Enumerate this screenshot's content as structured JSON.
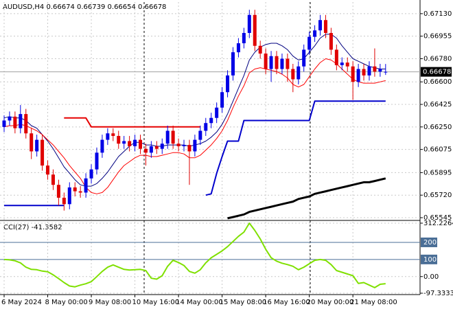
{
  "chart_data": {
    "type": "candlestick",
    "title": "AUDUSD,H4  0.66674 0.66739 0.66654 0.66678",
    "categories": [
      "6 May 2024",
      null,
      null,
      null,
      null,
      null,
      null,
      null,
      "8 May 00:00",
      null,
      null,
      null,
      null,
      null,
      null,
      null,
      "9 May 08:00",
      null,
      null,
      null,
      null,
      null,
      null,
      null,
      "10 May 16:00",
      null,
      null,
      null,
      null,
      null,
      null,
      null,
      "14 May 00:00",
      null,
      null,
      null,
      null,
      null,
      null,
      null,
      "15 May 08:00",
      null,
      null,
      null,
      null,
      null,
      null,
      null,
      "16 May 16:00",
      null,
      null,
      null,
      null,
      null,
      null,
      null,
      "20 May 00:00",
      null,
      null,
      null,
      null,
      null,
      null,
      null,
      "21 May 08:00",
      null,
      null,
      null,
      null,
      null,
      null
    ],
    "open": [
      0.6625,
      0.663,
      0.6633,
      0.6624,
      0.6635,
      0.662,
      0.6606,
      0.6615,
      0.6595,
      0.6588,
      0.658,
      0.657,
      0.6565,
      0.6578,
      0.6575,
      0.6574,
      0.6585,
      0.6592,
      0.6605,
      0.6615,
      0.662,
      0.6618,
      0.6612,
      0.6614,
      0.661,
      0.6615,
      0.6608,
      0.6605,
      0.661,
      0.6608,
      0.6612,
      0.6622,
      0.6612,
      0.661,
      0.6611,
      0.6606,
      0.6615,
      0.6622,
      0.6628,
      0.6632,
      0.664,
      0.6652,
      0.6665,
      0.6683,
      0.669,
      0.6698,
      0.6712,
      0.6688,
      0.6682,
      0.667,
      0.668,
      0.667,
      0.6678,
      0.667,
      0.6662,
      0.6672,
      0.6685,
      0.6695,
      0.67,
      0.6708,
      0.6698,
      0.6685,
      0.6673,
      0.6675,
      0.6672,
      0.666,
      0.667,
      0.6665,
      0.6672,
      0.6668,
      0.66674
    ],
    "high": [
      0.6634,
      0.6637,
      0.6637,
      0.6642,
      0.6639,
      0.6624,
      0.6619,
      0.6619,
      0.6599,
      0.6592,
      0.6584,
      0.6574,
      0.6582,
      0.6582,
      0.6579,
      0.6589,
      0.6596,
      0.6609,
      0.6619,
      0.6624,
      0.6624,
      0.6622,
      0.6618,
      0.6618,
      0.6619,
      0.6619,
      0.6612,
      0.6614,
      0.6614,
      0.6616,
      0.6626,
      0.6626,
      0.6616,
      0.6615,
      0.6615,
      0.6619,
      0.6626,
      0.6632,
      0.6636,
      0.6644,
      0.6656,
      0.6669,
      0.6687,
      0.6694,
      0.6702,
      0.6716,
      0.6716,
      0.6692,
      0.6686,
      0.6684,
      0.6684,
      0.6682,
      0.6682,
      0.6674,
      0.6676,
      0.6689,
      0.6699,
      0.6704,
      0.6712,
      0.6712,
      0.6702,
      0.6689,
      0.6679,
      0.6679,
      0.6676,
      0.6674,
      0.6674,
      0.6676,
      0.6686,
      0.6674,
      0.66739
    ],
    "low": [
      0.6621,
      0.6626,
      0.662,
      0.662,
      0.6616,
      0.66,
      0.6602,
      0.6591,
      0.6584,
      0.6576,
      0.6564,
      0.656,
      0.6561,
      0.6571,
      0.657,
      0.657,
      0.6581,
      0.6588,
      0.6601,
      0.6611,
      0.6614,
      0.6608,
      0.6608,
      0.6606,
      0.6606,
      0.6604,
      0.6595,
      0.6601,
      0.6604,
      0.6604,
      0.6608,
      0.6608,
      0.6606,
      0.6606,
      0.658,
      0.6602,
      0.6611,
      0.6618,
      0.6624,
      0.6628,
      0.6636,
      0.6648,
      0.6661,
      0.6679,
      0.6686,
      0.6694,
      0.6684,
      0.6678,
      0.6666,
      0.666,
      0.6666,
      0.6666,
      0.666,
      0.6652,
      0.6658,
      0.6668,
      0.6681,
      0.6691,
      0.6696,
      0.6694,
      0.6681,
      0.6669,
      0.6669,
      0.6668,
      0.6646,
      0.6656,
      0.6661,
      0.6661,
      0.6664,
      0.6664,
      0.66654
    ],
    "close": [
      0.663,
      0.6633,
      0.6624,
      0.6635,
      0.662,
      0.6606,
      0.6615,
      0.6595,
      0.6588,
      0.658,
      0.657,
      0.6565,
      0.6578,
      0.6575,
      0.6574,
      0.6585,
      0.6592,
      0.6605,
      0.6615,
      0.662,
      0.6618,
      0.6612,
      0.6614,
      0.661,
      0.6615,
      0.6608,
      0.6605,
      0.661,
      0.6608,
      0.6612,
      0.6622,
      0.6612,
      0.661,
      0.6611,
      0.6606,
      0.6615,
      0.6622,
      0.6628,
      0.6632,
      0.664,
      0.6652,
      0.6665,
      0.6683,
      0.669,
      0.6698,
      0.6712,
      0.6688,
      0.6682,
      0.667,
      0.668,
      0.667,
      0.6678,
      0.667,
      0.6662,
      0.6672,
      0.6685,
      0.6695,
      0.67,
      0.6708,
      0.6698,
      0.6685,
      0.6673,
      0.6675,
      0.6672,
      0.666,
      0.667,
      0.6665,
      0.6672,
      0.6668,
      0.667,
      0.66678
    ],
    "up_color": "#0000e6",
    "down_color": "#e00000",
    "last_price": 0.66678,
    "ylim": [
      0.65529,
      0.6722
    ],
    "yticks": [
      {
        "value": 0.6713,
        "label": "0.67130"
      },
      0.66955,
      {
        "value": 0.6678,
        "label": "0.66780"
      },
      {
        "value": 0.666,
        "label": "0.66600"
      },
      0.66425,
      {
        "value": 0.6625,
        "label": "0.66250"
      },
      0.66075,
      0.65895,
      {
        "value": 0.6572,
        "label": "0.65720"
      },
      0.65545
    ],
    "grid": true,
    "lines": [
      {
        "color": "#000080",
        "width": 1,
        "values": [
          0.6632,
          0.6633,
          0.6632,
          0.6632,
          0.663,
          0.6626,
          0.6624,
          0.6619,
          0.6614,
          0.6608,
          0.6601,
          0.6594,
          0.6589,
          0.6584,
          0.658,
          0.6579,
          0.6579,
          0.6581,
          0.6585,
          0.659,
          0.6596,
          0.6602,
          0.6606,
          0.661,
          0.6613,
          0.6613,
          0.6611,
          0.6611,
          0.661,
          0.661,
          0.6611,
          0.6611,
          0.6611,
          0.6611,
          0.661,
          0.6611,
          0.6612,
          0.6614,
          0.6617,
          0.6621,
          0.6627,
          0.6635,
          0.6645,
          0.6655,
          0.6665,
          0.6677,
          0.6683,
          0.6687,
          0.6689,
          0.669,
          0.669,
          0.6688,
          0.6685,
          0.668,
          0.6677,
          0.6678,
          0.6683,
          0.6688,
          0.6694,
          0.6697,
          0.6697,
          0.6694,
          0.6688,
          0.6683,
          0.6678,
          0.6676,
          0.6674,
          0.6672,
          0.6671,
          0.667,
          0.667
        ]
      },
      {
        "color": "#ff0000",
        "width": 1,
        "values": [
          0.6625,
          0.6626,
          0.6626,
          0.6627,
          0.6626,
          0.6624,
          0.6622,
          0.6619,
          0.6615,
          0.6611,
          0.6606,
          0.6601,
          0.6595,
          0.659,
          0.6585,
          0.6578,
          0.6574,
          0.6573,
          0.6574,
          0.6578,
          0.6584,
          0.659,
          0.6595,
          0.6598,
          0.6601,
          0.6603,
          0.6603,
          0.6602,
          0.6602,
          0.6603,
          0.6604,
          0.6605,
          0.6605,
          0.6604,
          0.6601,
          0.6601,
          0.6603,
          0.6607,
          0.6611,
          0.6616,
          0.6622,
          0.663,
          0.664,
          0.6649,
          0.6657,
          0.6667,
          0.667,
          0.6671,
          0.667,
          0.6669,
          0.6668,
          0.6666,
          0.6663,
          0.6658,
          0.6656,
          0.6658,
          0.6664,
          0.667,
          0.6675,
          0.6678,
          0.6677,
          0.6674,
          0.667,
          0.6666,
          0.6662,
          0.666,
          0.6659,
          0.6659,
          0.6659,
          0.666,
          0.6661
        ]
      },
      {
        "color": "#0000cc",
        "width": 2,
        "values": [
          0.6564,
          0.6564,
          0.6564,
          0.6564,
          0.6564,
          0.6564,
          0.6564,
          0.6564,
          0.6564,
          0.6564,
          0.6564,
          0.6564,
          null,
          null,
          null,
          null,
          null,
          null,
          null,
          null,
          null,
          null,
          null,
          null,
          null,
          null,
          null,
          null,
          null,
          null,
          null,
          null,
          null,
          null,
          null,
          null,
          null,
          0.6572,
          0.6573,
          0.6589,
          0.6602,
          0.6614,
          0.6614,
          0.6614,
          0.663,
          0.663,
          0.663,
          0.663,
          0.663,
          0.663,
          0.663,
          0.663,
          0.663,
          0.663,
          0.663,
          0.663,
          0.663,
          0.6645,
          0.6645,
          0.6645,
          0.6645,
          0.6645,
          0.6645,
          0.6645,
          0.6645,
          0.6645,
          0.6645,
          0.6645,
          0.6645,
          0.6645,
          0.6645
        ]
      },
      {
        "color": "#e60000",
        "width": 2,
        "values": [
          null,
          null,
          null,
          null,
          null,
          null,
          null,
          null,
          null,
          null,
          null,
          0.6632,
          0.6632,
          0.6632,
          0.6632,
          0.6632,
          0.6625,
          0.6625,
          0.6625,
          0.6625,
          0.6625,
          0.6625,
          0.6625,
          0.6625,
          0.6625,
          0.6625,
          0.6625,
          0.6625,
          0.6625,
          0.6625,
          0.6625,
          0.6625,
          0.6625,
          0.6625,
          0.6625,
          0.6625,
          0.6625,
          null,
          null,
          null,
          null,
          null,
          null,
          null,
          null,
          null,
          null,
          null,
          null,
          null,
          null,
          null,
          null,
          null,
          null,
          null,
          null,
          null,
          null,
          null,
          null,
          null,
          null,
          null,
          null,
          null,
          null,
          null,
          null,
          null,
          null
        ]
      },
      {
        "color": "#000000",
        "width": 3,
        "values": [
          null,
          null,
          null,
          null,
          null,
          null,
          null,
          null,
          null,
          null,
          null,
          null,
          null,
          null,
          null,
          null,
          null,
          null,
          null,
          null,
          null,
          null,
          null,
          null,
          null,
          null,
          null,
          null,
          null,
          null,
          null,
          null,
          null,
          null,
          null,
          null,
          null,
          null,
          null,
          null,
          null,
          0.6554,
          0.6555,
          0.6556,
          0.6557,
          0.6559,
          0.656,
          0.6561,
          0.6562,
          0.6563,
          0.6564,
          0.6565,
          0.6566,
          0.6567,
          0.6569,
          0.657,
          0.6571,
          0.6573,
          0.6574,
          0.6575,
          0.6576,
          0.6577,
          0.6578,
          0.6579,
          0.658,
          0.6581,
          0.6582,
          0.6582,
          0.6583,
          0.6584,
          0.6585
        ]
      }
    ],
    "cci": {
      "type": "line",
      "label": "CCI(27) -41.3582",
      "color": "#7fe000",
      "ylim": [
        -97.3333,
        312.2264
      ],
      "yticks": [
        312.2264,
        {
          "value": 0,
          "label": "0.00"
        },
        -97.3333
      ],
      "levels": [
        200,
        100
      ],
      "level_color": "#4a6e96",
      "values": [
        100,
        98,
        92,
        80,
        55,
        42,
        40,
        32,
        28,
        10,
        -12,
        -35,
        -55,
        -60,
        -50,
        -42,
        -30,
        0,
        30,
        55,
        68,
        55,
        42,
        38,
        40,
        42,
        35,
        -10,
        -15,
        5,
        60,
        95,
        82,
        65,
        30,
        20,
        40,
        80,
        110,
        130,
        150,
        175,
        205,
        235,
        260,
        312.2264,
        270,
        220,
        160,
        110,
        90,
        78,
        70,
        60,
        40,
        55,
        75,
        95,
        100,
        95,
        70,
        35,
        25,
        15,
        5,
        -40,
        -35,
        -50,
        -65,
        -45,
        -41.3582
      ]
    }
  }
}
